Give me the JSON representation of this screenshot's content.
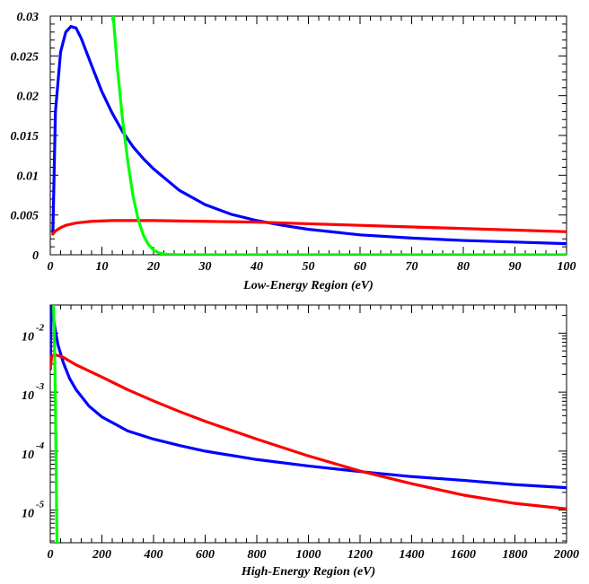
{
  "chart_data": [
    {
      "type": "line",
      "xlabel": "Low-Energy Region (eV)",
      "ylabel": "",
      "xlim": [
        0,
        100
      ],
      "ylim": [
        0,
        0.03
      ],
      "x_ticks": [
        "0",
        "10",
        "20",
        "30",
        "40",
        "50",
        "60",
        "70",
        "80",
        "90",
        "100"
      ],
      "y_ticks": [
        "0",
        "0.005",
        "0.01",
        "0.015",
        "0.02",
        "0.025",
        "0.03"
      ],
      "grid": false,
      "series": [
        {
          "color": "#0000ff",
          "x": [
            0.5,
            1,
            2,
            3,
            4,
            5,
            6,
            8,
            10,
            12,
            14,
            16,
            18,
            20,
            25,
            30,
            35,
            40,
            45,
            50,
            60,
            70,
            80,
            90,
            100
          ],
          "y": [
            0.0028,
            0.018,
            0.0255,
            0.028,
            0.0287,
            0.0285,
            0.0272,
            0.0238,
            0.0205,
            0.0178,
            0.0155,
            0.0136,
            0.0121,
            0.0108,
            0.0081,
            0.0063,
            0.0051,
            0.0043,
            0.0037,
            0.0032,
            0.0025,
            0.0021,
            0.0018,
            0.0016,
            0.0014
          ]
        },
        {
          "color": "#ff0000",
          "x": [
            0.5,
            1,
            2,
            3,
            5,
            8,
            12,
            16,
            20,
            30,
            40,
            50,
            60,
            70,
            80,
            90,
            100
          ],
          "y": [
            0.0026,
            0.003,
            0.0034,
            0.0037,
            0.004,
            0.0042,
            0.0043,
            0.0043,
            0.0043,
            0.0042,
            0.0041,
            0.0039,
            0.0037,
            0.0035,
            0.0033,
            0.0031,
            0.0029
          ]
        },
        {
          "color": "#00ff00",
          "x": [
            12.2,
            13,
            14,
            15,
            16,
            17,
            18,
            19,
            20,
            21,
            22,
            23,
            25,
            30,
            100
          ],
          "y": [
            0.03,
            0.0235,
            0.017,
            0.0118,
            0.0075,
            0.0045,
            0.0025,
            0.0013,
            0.0006,
            0.00025,
            0.0001,
            4e-05,
            0,
            0,
            0
          ]
        }
      ]
    },
    {
      "type": "line",
      "xlabel": "High-Energy Region (eV)",
      "ylabel": "",
      "xlim": [
        0,
        2000
      ],
      "ylim": [
        2.8e-06,
        0.03
      ],
      "yscale": "log",
      "x_ticks": [
        "0",
        "200",
        "400",
        "600",
        "800",
        "1000",
        "1200",
        "1400",
        "1600",
        "1800",
        "2000"
      ],
      "y_ticks": [
        {
          "base": "10",
          "exp": "-2",
          "value": 0.01
        },
        {
          "base": "10",
          "exp": "-3",
          "value": 0.001
        },
        {
          "base": "10",
          "exp": "-4",
          "value": 0.0001
        },
        {
          "base": "10",
          "exp": "-5",
          "value": 1e-05
        }
      ],
      "grid": false,
      "series": [
        {
          "color": "#0000ff",
          "x": [
            1,
            3,
            5,
            10,
            20,
            30,
            50,
            75,
            100,
            150,
            200,
            300,
            400,
            500,
            600,
            800,
            1000,
            1200,
            1400,
            1600,
            1800,
            2000
          ],
          "y": [
            0.0025,
            0.028,
            0.028,
            0.0205,
            0.0108,
            0.0063,
            0.0032,
            0.0017,
            0.0011,
            0.00058,
            0.00038,
            0.00022,
            0.00016,
            0.000125,
            0.0001,
            7.2e-05,
            5.6e-05,
            4.5e-05,
            3.7e-05,
            3.2e-05,
            2.7e-05,
            2.4e-05
          ]
        },
        {
          "color": "#ff0000",
          "x": [
            1,
            5,
            10,
            20,
            50,
            100,
            200,
            300,
            400,
            500,
            600,
            800,
            1000,
            1200,
            1400,
            1600,
            1800,
            2000
          ],
          "y": [
            0.0026,
            0.004,
            0.0042,
            0.0043,
            0.0039,
            0.0029,
            0.0018,
            0.0011,
            0.00071,
            0.00047,
            0.00032,
            0.00016,
            8.3e-05,
            4.6e-05,
            2.8e-05,
            1.8e-05,
            1.3e-05,
            1.05e-05
          ]
        },
        {
          "color": "#00ff00",
          "x": [
            12.2,
            14,
            16,
            18,
            20,
            22,
            24,
            25,
            26,
            28,
            30
          ],
          "y": [
            0.03,
            0.017,
            0.0075,
            0.0025,
            0.0006,
            0.0001,
            1.5e-05,
            6e-06,
            2.8e-06,
            2.8e-06,
            2.8e-06
          ]
        }
      ]
    }
  ]
}
